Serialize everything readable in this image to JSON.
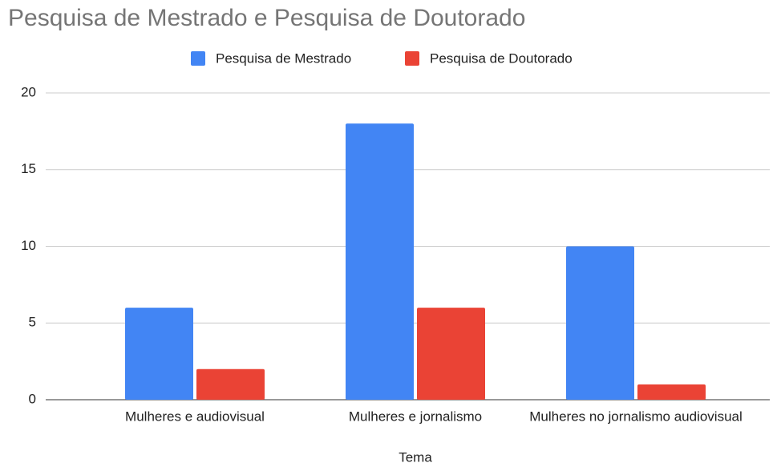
{
  "chart_data": {
    "type": "bar",
    "title": "Pesquisa de Mestrado e Pesquisa de Doutorado",
    "x_label": "Tema",
    "categories": [
      "Mulheres e audiovisual",
      "Mulheres e jornalismo",
      "Mulheres no jornalismo audiovisual"
    ],
    "series": [
      {
        "name": "Pesquisa de Mestrado",
        "color": "#4285f4",
        "values": [
          6,
          18,
          10
        ]
      },
      {
        "name": "Pesquisa de Doutorado",
        "color": "#ea4335",
        "values": [
          2,
          6,
          1
        ]
      }
    ],
    "ylim": [
      0,
      20
    ],
    "yticks": [
      0,
      5,
      10,
      15,
      20
    ],
    "grid": true,
    "legend": "top"
  }
}
